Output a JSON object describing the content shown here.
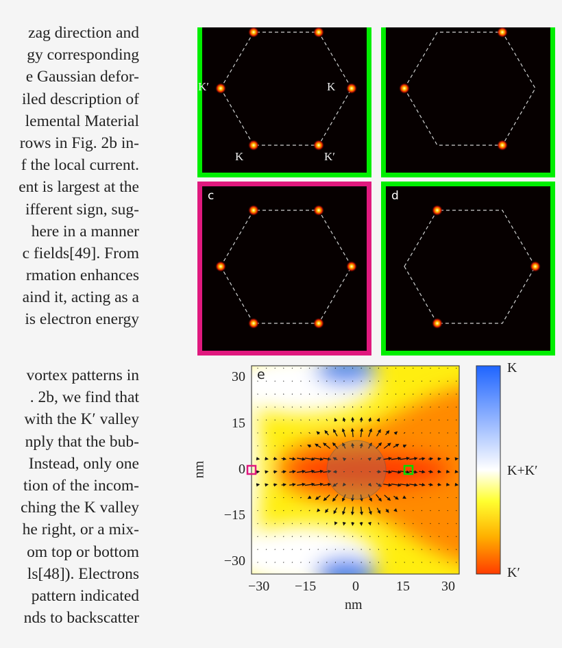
{
  "text_column_top": [
    "zag direction and",
    "gy corresponding",
    "e Gaussian defor-",
    "iled description of",
    "lemental Material",
    "rows in Fig. 2b in-",
    "f the local current.",
    "ent is largest at the",
    "ifferent sign, sug-",
    "here in a manner",
    "c fields[49]. From",
    "rmation enhances",
    "aind it, acting as a",
    "is electron energy"
  ],
  "text_column_bottom": [
    "vortex patterns in",
    ". 2b, we find that",
    "with the K′ valley",
    "nply that the bub-",
    "Instead, only one",
    "tion of the incom-",
    "ching the K valley",
    "he right, or a mix-",
    "om top or bottom",
    "ls[48]). Electrons",
    "pattern indicated",
    "nds to backscatter"
  ],
  "colors": {
    "green_frame": "#00ee00",
    "magenta_frame": "#e0197e",
    "panel_bg": "#060000"
  },
  "panels": [
    {
      "id": "a",
      "label": "",
      "frame": "green",
      "spots": [
        "top-left",
        "top-right",
        "left",
        "right",
        "bottom-left",
        "bottom-right"
      ],
      "valley_labels": {
        "left": "K′",
        "right": "K",
        "bottom_left": "K",
        "bottom_right": "K′"
      }
    },
    {
      "id": "b",
      "label": "",
      "frame": "green",
      "spots": [
        "top-right",
        "left",
        "bottom-right"
      ]
    },
    {
      "id": "c",
      "label": "c",
      "frame": "magenta",
      "spots": [
        "top-left",
        "top-right",
        "left",
        "right",
        "bottom-left",
        "bottom-right"
      ]
    },
    {
      "id": "d",
      "label": "d",
      "frame": "green",
      "spots": [
        "top-left",
        "right",
        "bottom-left"
      ]
    }
  ],
  "chart_data": {
    "type": "heatmap",
    "panel_label": "e",
    "xlabel": "nm",
    "ylabel": "nm",
    "xlim": [
      -34,
      33.5
    ],
    "ylim": [
      -34,
      34
    ],
    "xticks": [
      "−30",
      "−15",
      "0",
      "15",
      "30"
    ],
    "yticks": [
      "30",
      "15",
      "0",
      "−15",
      "−30"
    ],
    "colorbar": {
      "labels": [
        "K",
        "K+K′",
        "K′"
      ],
      "colors": [
        "#1e64ff",
        "#ffffff",
        "#ffff00",
        "#ff3c00"
      ]
    },
    "bubble": {
      "center": [
        0,
        0
      ],
      "radius_nm": 9.5
    },
    "markers": [
      {
        "color": "#e0197e",
        "x": -34,
        "y": 0
      },
      {
        "color": "#00dd00",
        "x": 17,
        "y": 0
      }
    ],
    "overlay": "local current vector field (quiver)"
  }
}
